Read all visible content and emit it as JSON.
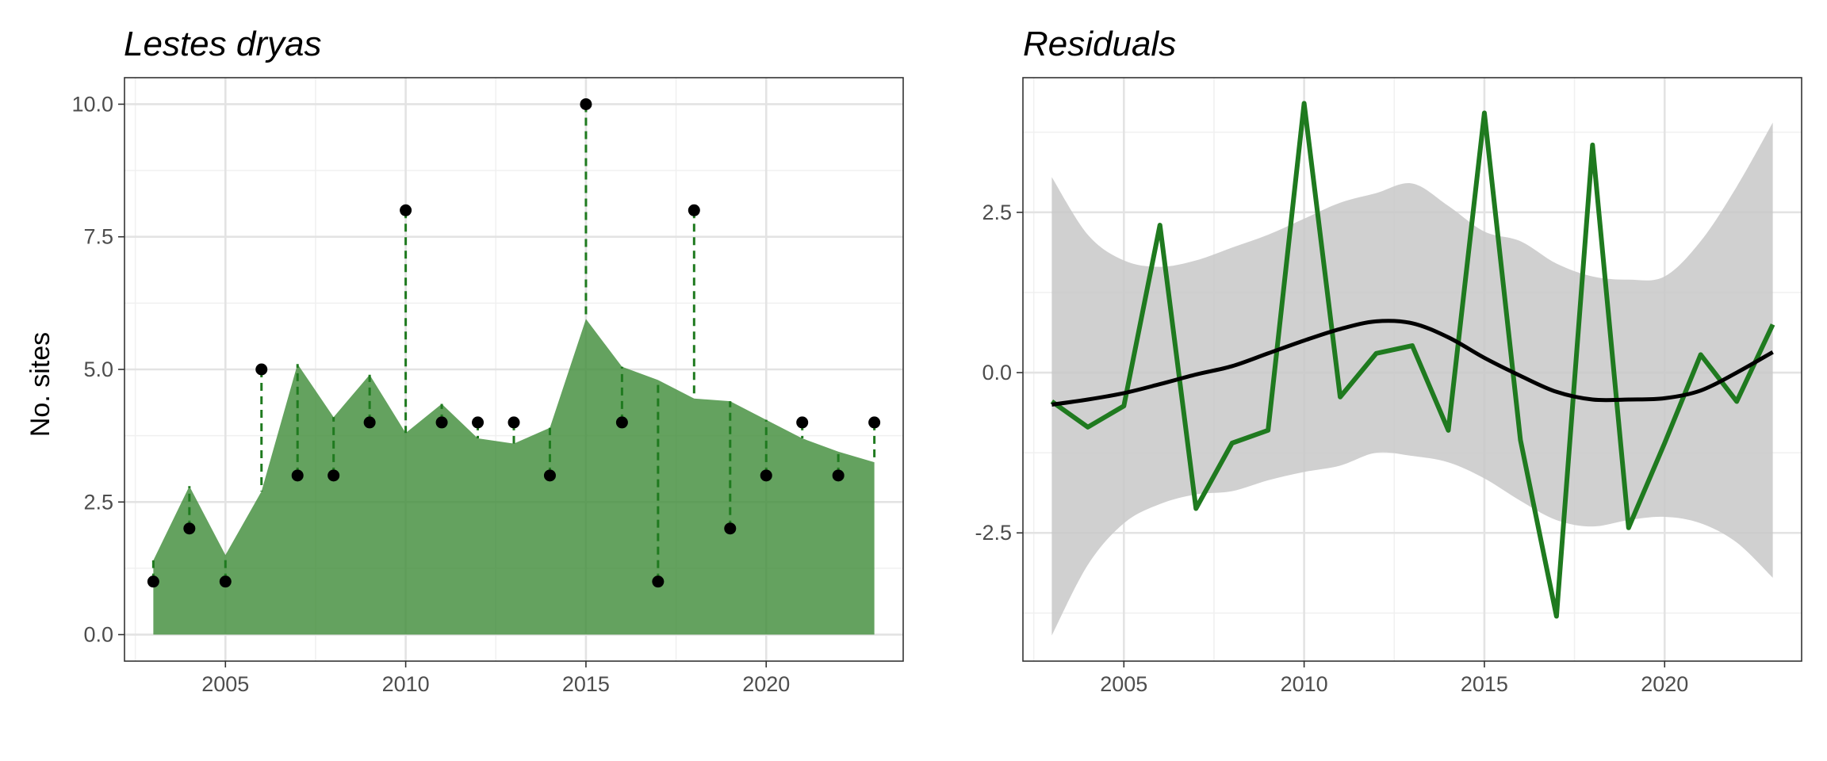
{
  "chart_data": [
    {
      "type": "area",
      "title": "Lestes dryas",
      "xlabel": "",
      "ylabel": "No. sites",
      "xlim": [
        2002.2,
        2023.8
      ],
      "ylim": [
        -0.5,
        10.5
      ],
      "x_ticks": [
        2005,
        2010,
        2015,
        2020
      ],
      "x_tick_labels": [
        "2005",
        "2010",
        "2015",
        "2020"
      ],
      "y_ticks": [
        0,
        2.5,
        5,
        7.5,
        10
      ],
      "y_tick_labels": [
        "0.0",
        "2.5",
        "5.0",
        "7.5",
        "10.0"
      ],
      "grid": true,
      "legend": "none",
      "colors": {
        "fitted_fill": "#3d8b37",
        "residual_segment": "#1f7a1f",
        "observed_point": "#000000"
      },
      "series": [
        {
          "x": [
            2003,
            2004,
            2005,
            2006,
            2007,
            2008,
            2009,
            2010,
            2011,
            2012,
            2013,
            2014,
            2015,
            2016,
            2017,
            2018,
            2019,
            2020,
            2021,
            2022,
            2023
          ],
          "values": [
            1.4,
            2.8,
            1.5,
            2.7,
            5.1,
            4.1,
            4.9,
            3.8,
            4.35,
            3.7,
            3.6,
            3.9,
            5.95,
            5.05,
            4.8,
            4.45,
            4.4,
            4.05,
            3.7,
            3.45,
            3.25
          ]
        },
        {
          "x": [
            2003,
            2004,
            2005,
            2006,
            2007,
            2008,
            2009,
            2010,
            2011,
            2012,
            2013,
            2014,
            2015,
            2016,
            2017,
            2018,
            2019,
            2020,
            2021,
            2022,
            2023
          ],
          "values": [
            1,
            2,
            1,
            5,
            3,
            3,
            4,
            8,
            4,
            4,
            4,
            3,
            10,
            4,
            1,
            8,
            2,
            3,
            4,
            3,
            4
          ]
        }
      ]
    },
    {
      "type": "line",
      "title": "Residuals",
      "xlabel": "",
      "ylabel": "",
      "xlim": [
        2002.2,
        2023.8
      ],
      "ylim": [
        -4.5,
        4.6
      ],
      "x_ticks": [
        2005,
        2010,
        2015,
        2020
      ],
      "x_tick_labels": [
        "2005",
        "2010",
        "2015",
        "2020"
      ],
      "y_ticks": [
        -2.5,
        0,
        2.5
      ],
      "y_tick_labels": [
        "-2.5",
        "0.0",
        "2.5"
      ],
      "grid": true,
      "legend": "none",
      "colors": {
        "residual_line": "#1f7a1f",
        "smooth_line": "#000000",
        "ribbon": "#c8c8c8"
      },
      "series": [
        {
          "x": [
            2003,
            2004,
            2005,
            2006,
            2007,
            2008,
            2009,
            2010,
            2011,
            2012,
            2013,
            2014,
            2015,
            2016,
            2017,
            2018,
            2019,
            2020,
            2021,
            2022,
            2023
          ],
          "values": [
            -0.45,
            -0.85,
            -0.52,
            2.3,
            -2.12,
            -1.1,
            -0.9,
            4.2,
            -0.38,
            0.3,
            0.42,
            -0.9,
            4.05,
            -1.05,
            -3.8,
            3.55,
            -2.42,
            -1.1,
            0.28,
            -0.45,
            0.75
          ]
        },
        {
          "x": [
            2003,
            2004,
            2005,
            2006,
            2007,
            2008,
            2009,
            2010,
            2011,
            2012,
            2013,
            2014,
            2015,
            2016,
            2017,
            2018,
            2019,
            2020,
            2021,
            2022,
            2023
          ],
          "values": [
            -0.5,
            -0.42,
            -0.32,
            -0.18,
            -0.03,
            0.1,
            0.3,
            0.5,
            0.68,
            0.8,
            0.77,
            0.55,
            0.23,
            -0.05,
            -0.3,
            -0.42,
            -0.42,
            -0.4,
            -0.28,
            0.0,
            0.32
          ]
        },
        {
          "x": [
            2003,
            2004,
            2005,
            2006,
            2007,
            2008,
            2009,
            2010,
            2011,
            2012,
            2013,
            2014,
            2015,
            2016,
            2017,
            2018,
            2019,
            2020,
            2021,
            2022,
            2023
          ],
          "lower": [
            -4.1,
            -3.0,
            -2.35,
            -2.05,
            -1.9,
            -1.85,
            -1.68,
            -1.55,
            -1.45,
            -1.25,
            -1.3,
            -1.4,
            -1.65,
            -2.0,
            -2.3,
            -2.4,
            -2.3,
            -2.25,
            -2.35,
            -2.65,
            -3.2
          ],
          "upper": [
            3.05,
            2.15,
            1.75,
            1.65,
            1.75,
            1.95,
            2.15,
            2.4,
            2.65,
            2.8,
            2.95,
            2.6,
            2.2,
            2.05,
            1.7,
            1.5,
            1.45,
            1.5,
            2.05,
            2.9,
            3.9
          ]
        }
      ]
    }
  ]
}
